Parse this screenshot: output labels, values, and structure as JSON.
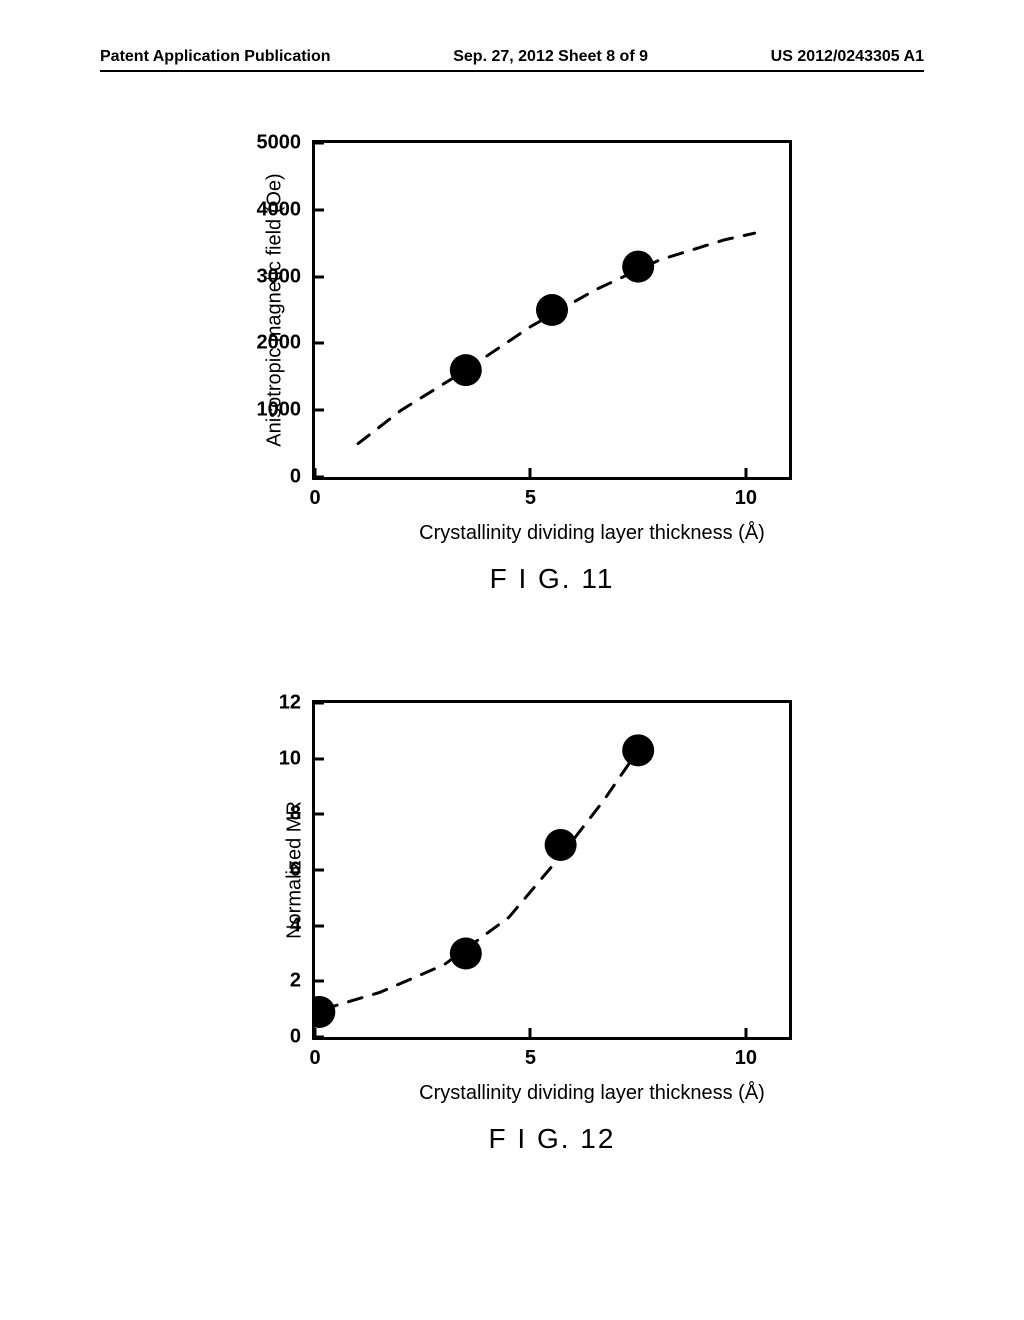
{
  "header": {
    "left": "Patent Application Publication",
    "center": "Sep. 27, 2012  Sheet 8 of 9",
    "right": "US 2012/0243305 A1"
  },
  "fig11": {
    "type": "scatter",
    "caption": "F I G. 11",
    "y_label": "Anisotropic magnetic field (Oe)",
    "x_label": "Crystallinity dividing layer thickness (Å)",
    "y_ticks": [
      0,
      1000,
      2000,
      3000,
      4000,
      5000
    ],
    "x_ticks": [
      0,
      5,
      10
    ],
    "ylim": [
      0,
      5000
    ],
    "xlim": [
      0,
      11
    ],
    "points": [
      {
        "x": 3.5,
        "y": 1600
      },
      {
        "x": 5.5,
        "y": 2500
      },
      {
        "x": 7.5,
        "y": 3150
      }
    ],
    "curve": [
      {
        "x": 1.0,
        "y": 500
      },
      {
        "x": 2.0,
        "y": 1000
      },
      {
        "x": 3.5,
        "y": 1600
      },
      {
        "x": 5.0,
        "y": 2250
      },
      {
        "x": 6.5,
        "y": 2800
      },
      {
        "x": 8.0,
        "y": 3250
      },
      {
        "x": 9.5,
        "y": 3550
      },
      {
        "x": 10.2,
        "y": 3650
      }
    ],
    "marker_color": "#000000",
    "marker_radius": 16,
    "curve_color": "#000000",
    "curve_dash": "14,12",
    "curve_width": 3,
    "background_color": "#ffffff",
    "label_fontsize": 20,
    "tick_fontsize": 20
  },
  "fig12": {
    "type": "scatter",
    "caption": "F I G. 12",
    "y_label": "Normalized MR",
    "x_label": "Crystallinity dividing layer thickness (Å)",
    "y_ticks": [
      0,
      2,
      4,
      6,
      8,
      10,
      12
    ],
    "x_ticks": [
      0,
      5,
      10
    ],
    "ylim": [
      0,
      12
    ],
    "xlim": [
      0,
      11
    ],
    "points": [
      {
        "x": 0.1,
        "y": 0.9
      },
      {
        "x": 3.5,
        "y": 3.0
      },
      {
        "x": 5.7,
        "y": 6.9
      },
      {
        "x": 7.5,
        "y": 10.3
      }
    ],
    "curve": [
      {
        "x": 0.2,
        "y": 1.0
      },
      {
        "x": 1.5,
        "y": 1.6
      },
      {
        "x": 3.0,
        "y": 2.6
      },
      {
        "x": 4.5,
        "y": 4.3
      },
      {
        "x": 5.7,
        "y": 6.5
      },
      {
        "x": 6.7,
        "y": 8.5
      },
      {
        "x": 7.5,
        "y": 10.3
      }
    ],
    "marker_color": "#000000",
    "marker_radius": 16,
    "curve_color": "#000000",
    "curve_dash": "14,12",
    "curve_width": 3,
    "background_color": "#ffffff",
    "label_fontsize": 20,
    "tick_fontsize": 20
  }
}
